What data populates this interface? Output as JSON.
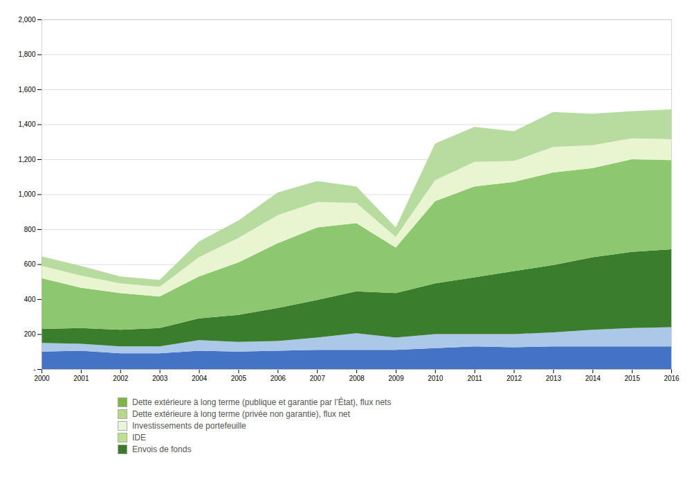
{
  "chart_data": {
    "type": "area",
    "stacked": true,
    "x": [
      2000,
      2001,
      2002,
      2003,
      2004,
      2005,
      2006,
      2007,
      2008,
      2009,
      2010,
      2011,
      2012,
      2013,
      2014,
      2015,
      2016
    ],
    "series": [
      {
        "color": "#4472c4",
        "values": [
          100,
          105,
          90,
          90,
          105,
          100,
          105,
          110,
          110,
          110,
          120,
          130,
          125,
          130,
          130,
          130,
          130
        ]
      },
      {
        "color": "#abc8e8",
        "values": [
          50,
          40,
          40,
          40,
          60,
          55,
          55,
          70,
          95,
          70,
          80,
          70,
          75,
          80,
          95,
          105,
          110
        ]
      },
      {
        "color": "#3a7d2c",
        "values": [
          80,
          90,
          95,
          105,
          125,
          155,
          190,
          215,
          240,
          255,
          290,
          325,
          360,
          385,
          415,
          435,
          445
        ]
      },
      {
        "color": "#8dc870",
        "values": [
          290,
          230,
          210,
          180,
          240,
          300,
          370,
          415,
          390,
          260,
          470,
          520,
          510,
          530,
          510,
          530,
          510
        ]
      },
      {
        "color": "#e8f5d0",
        "values": [
          70,
          70,
          55,
          55,
          110,
          140,
          160,
          145,
          115,
          60,
          120,
          140,
          120,
          145,
          130,
          120,
          120
        ]
      },
      {
        "color": "#b8dca0",
        "values": [
          55,
          55,
          40,
          40,
          90,
          100,
          130,
          120,
          95,
          55,
          210,
          200,
          170,
          200,
          180,
          155,
          170
        ]
      }
    ],
    "legend_entries": [
      {
        "name": "Dette extérieure à long terme (publique et garantie par l’État), flux nets",
        "color": "#7ab640"
      },
      {
        "name": "Dette extérieure à long terme (privée non garantie), flux net",
        "color": "#b8d98a"
      },
      {
        "name": "Investissements de portefeuille",
        "color": "#e8f5d8"
      },
      {
        "name": "IDE",
        "color": "#c0e090"
      },
      {
        "name": "Envois de fonds",
        "color": "#3c7a28"
      }
    ],
    "legend": "bottom",
    "xlim": [
      2000,
      2016
    ],
    "xticks": [
      2000,
      2001,
      2002,
      2003,
      2004,
      2005,
      2006,
      2007,
      2008,
      2009,
      2010,
      2011,
      2012,
      2013,
      2014,
      2015,
      2016
    ],
    "ylim": [
      0,
      2000
    ],
    "yticks": [
      {
        "value": 0,
        "label": "-"
      },
      200,
      400,
      600,
      800,
      {
        "value": 1000,
        "label": "1,000"
      },
      {
        "value": 1200,
        "label": "1,200"
      },
      {
        "value": 1400,
        "label": "1,400"
      },
      {
        "value": 1600,
        "label": "1,600"
      },
      {
        "value": 1800,
        "label": "1,800"
      },
      {
        "value": 2000,
        "label": "2,000"
      }
    ],
    "grid": true
  }
}
